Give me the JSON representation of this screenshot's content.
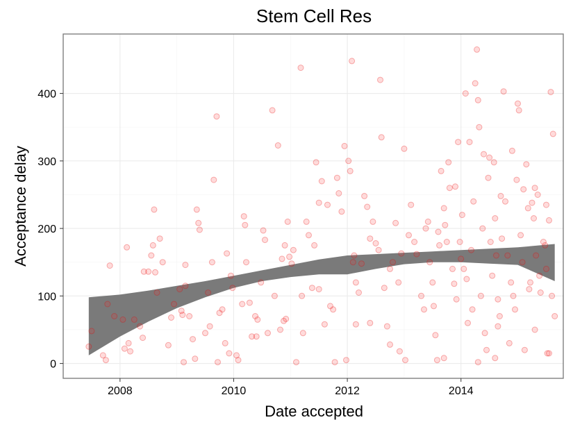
{
  "chart_data": {
    "type": "scatter",
    "title": "Stem Cell Res",
    "xlabel": "Date accepted",
    "ylabel": "Acceptance delay",
    "xlim": [
      2007.0,
      2015.8
    ],
    "ylim": [
      -22,
      488
    ],
    "x_ticks": [
      2008,
      2010,
      2012,
      2014
    ],
    "x_tick_labels": [
      "2008",
      "2010",
      "2012",
      "2014"
    ],
    "y_ticks": [
      0,
      100,
      200,
      300,
      400
    ],
    "y_tick_labels": [
      "0",
      "100",
      "200",
      "300",
      "400"
    ],
    "grid": true,
    "points": [
      [
        2007.45,
        25
      ],
      [
        2007.5,
        48
      ],
      [
        2007.7,
        12
      ],
      [
        2007.75,
        5
      ],
      [
        2007.78,
        88
      ],
      [
        2007.82,
        145
      ],
      [
        2007.9,
        70
      ],
      [
        2008.05,
        65
      ],
      [
        2008.08,
        22
      ],
      [
        2008.12,
        172
      ],
      [
        2008.15,
        30
      ],
      [
        2008.18,
        18
      ],
      [
        2008.25,
        65
      ],
      [
        2008.35,
        55
      ],
      [
        2008.4,
        38
      ],
      [
        2008.42,
        136
      ],
      [
        2008.5,
        136
      ],
      [
        2008.55,
        160
      ],
      [
        2008.58,
        175
      ],
      [
        2008.6,
        228
      ],
      [
        2008.62,
        135
      ],
      [
        2008.65,
        105
      ],
      [
        2008.7,
        185
      ],
      [
        2008.75,
        150
      ],
      [
        2008.85,
        27
      ],
      [
        2008.9,
        68
      ],
      [
        2008.95,
        88
      ],
      [
        2009.05,
        110
      ],
      [
        2009.08,
        78
      ],
      [
        2009.1,
        72
      ],
      [
        2009.12,
        2
      ],
      [
        2009.15,
        146
      ],
      [
        2009.22,
        70
      ],
      [
        2009.28,
        36
      ],
      [
        2009.32,
        7
      ],
      [
        2009.35,
        228
      ],
      [
        2009.38,
        208
      ],
      [
        2009.4,
        198
      ],
      [
        2009.5,
        45
      ],
      [
        2009.58,
        55
      ],
      [
        2009.62,
        150
      ],
      [
        2009.65,
        272
      ],
      [
        2009.7,
        366
      ],
      [
        2009.72,
        2
      ],
      [
        2009.75,
        75
      ],
      [
        2009.8,
        80
      ],
      [
        2009.85,
        30
      ],
      [
        2009.88,
        163
      ],
      [
        2009.92,
        15
      ],
      [
        2009.98,
        112
      ],
      [
        2010.05,
        12
      ],
      [
        2010.08,
        5
      ],
      [
        2010.15,
        88
      ],
      [
        2010.18,
        218
      ],
      [
        2010.2,
        205
      ],
      [
        2010.22,
        150
      ],
      [
        2010.28,
        90
      ],
      [
        2010.32,
        40
      ],
      [
        2010.38,
        70
      ],
      [
        2010.42,
        65
      ],
      [
        2010.48,
        120
      ],
      [
        2010.52,
        197
      ],
      [
        2010.55,
        183
      ],
      [
        2010.6,
        45
      ],
      [
        2010.68,
        375
      ],
      [
        2010.72,
        100
      ],
      [
        2010.78,
        323
      ],
      [
        2010.82,
        50
      ],
      [
        2010.88,
        63
      ],
      [
        2010.9,
        175
      ],
      [
        2010.92,
        66
      ],
      [
        2010.95,
        210
      ],
      [
        2010.98,
        158
      ],
      [
        2011.02,
        148
      ],
      [
        2011.05,
        168
      ],
      [
        2011.1,
        2
      ],
      [
        2011.18,
        438
      ],
      [
        2011.22,
        45
      ],
      [
        2011.28,
        210
      ],
      [
        2011.32,
        190
      ],
      [
        2011.38,
        112
      ],
      [
        2011.42,
        175
      ],
      [
        2011.45,
        298
      ],
      [
        2011.5,
        238
      ],
      [
        2011.55,
        270
      ],
      [
        2011.6,
        58
      ],
      [
        2011.65,
        235
      ],
      [
        2011.7,
        85
      ],
      [
        2011.75,
        80
      ],
      [
        2011.78,
        2
      ],
      [
        2011.82,
        275
      ],
      [
        2011.85,
        252
      ],
      [
        2011.9,
        225
      ],
      [
        2011.95,
        322
      ],
      [
        2011.98,
        5
      ],
      [
        2012.02,
        300
      ],
      [
        2012.05,
        285
      ],
      [
        2012.08,
        448
      ],
      [
        2012.1,
        150
      ],
      [
        2012.12,
        160
      ],
      [
        2012.15,
        58
      ],
      [
        2012.2,
        105
      ],
      [
        2012.25,
        148
      ],
      [
        2012.3,
        248
      ],
      [
        2012.35,
        232
      ],
      [
        2012.4,
        185
      ],
      [
        2012.45,
        210
      ],
      [
        2012.5,
        178
      ],
      [
        2012.55,
        168
      ],
      [
        2012.58,
        420
      ],
      [
        2012.6,
        335
      ],
      [
        2012.65,
        112
      ],
      [
        2012.7,
        55
      ],
      [
        2012.75,
        28
      ],
      [
        2012.8,
        150
      ],
      [
        2012.85,
        208
      ],
      [
        2012.9,
        120
      ],
      [
        2012.92,
        18
      ],
      [
        2012.95,
        163
      ],
      [
        2013.0,
        318
      ],
      [
        2013.02,
        5
      ],
      [
        2013.08,
        190
      ],
      [
        2013.12,
        235
      ],
      [
        2013.18,
        180
      ],
      [
        2013.22,
        162
      ],
      [
        2013.3,
        100
      ],
      [
        2013.38,
        200
      ],
      [
        2013.42,
        210
      ],
      [
        2013.45,
        150
      ],
      [
        2013.5,
        120
      ],
      [
        2013.52,
        85
      ],
      [
        2013.55,
        42
      ],
      [
        2013.58,
        5
      ],
      [
        2013.6,
        195
      ],
      [
        2013.62,
        175
      ],
      [
        2013.65,
        285
      ],
      [
        2013.7,
        230
      ],
      [
        2013.72,
        205
      ],
      [
        2013.75,
        180
      ],
      [
        2013.78,
        298
      ],
      [
        2013.8,
        260
      ],
      [
        2013.85,
        140
      ],
      [
        2013.88,
        118
      ],
      [
        2013.9,
        262
      ],
      [
        2013.92,
        95
      ],
      [
        2013.95,
        328
      ],
      [
        2013.98,
        180
      ],
      [
        2014.0,
        155
      ],
      [
        2014.02,
        220
      ],
      [
        2014.05,
        140
      ],
      [
        2014.08,
        400
      ],
      [
        2014.1,
        125
      ],
      [
        2014.12,
        60
      ],
      [
        2014.15,
        328
      ],
      [
        2014.18,
        168
      ],
      [
        2014.2,
        80
      ],
      [
        2014.22,
        240
      ],
      [
        2014.25,
        415
      ],
      [
        2014.28,
        465
      ],
      [
        2014.3,
        390
      ],
      [
        2014.32,
        350
      ],
      [
        2014.35,
        100
      ],
      [
        2014.38,
        200
      ],
      [
        2014.4,
        310
      ],
      [
        2014.42,
        45
      ],
      [
        2014.45,
        20
      ],
      [
        2014.48,
        275
      ],
      [
        2014.5,
        305
      ],
      [
        2014.52,
        180
      ],
      [
        2014.55,
        130
      ],
      [
        2014.58,
        298
      ],
      [
        2014.6,
        215
      ],
      [
        2014.62,
        160
      ],
      [
        2014.65,
        95
      ],
      [
        2014.68,
        70
      ],
      [
        2014.7,
        248
      ],
      [
        2014.72,
        185
      ],
      [
        2014.75,
        403
      ],
      [
        2014.78,
        240
      ],
      [
        2014.82,
        160
      ],
      [
        2014.85,
        30
      ],
      [
        2014.88,
        120
      ],
      [
        2014.9,
        315
      ],
      [
        2014.92,
        100
      ],
      [
        2014.95,
        80
      ],
      [
        2014.98,
        272
      ],
      [
        2015.0,
        385
      ],
      [
        2015.02,
        375
      ],
      [
        2015.05,
        190
      ],
      [
        2015.08,
        150
      ],
      [
        2015.1,
        258
      ],
      [
        2015.12,
        20
      ],
      [
        2015.15,
        295
      ],
      [
        2015.18,
        230
      ],
      [
        2015.2,
        110
      ],
      [
        2015.25,
        238
      ],
      [
        2015.28,
        215
      ],
      [
        2015.3,
        260
      ],
      [
        2015.32,
        160
      ],
      [
        2015.35,
        250
      ],
      [
        2015.38,
        130
      ],
      [
        2015.4,
        105
      ],
      [
        2015.45,
        180
      ],
      [
        2015.48,
        175
      ],
      [
        2015.5,
        140
      ],
      [
        2015.52,
        15
      ],
      [
        2015.55,
        212
      ],
      [
        2015.58,
        402
      ],
      [
        2015.6,
        100
      ],
      [
        2015.62,
        340
      ],
      [
        2015.65,
        70
      ],
      [
        2015.5,
        235
      ],
      [
        2015.55,
        15
      ],
      [
        2015.3,
        50
      ],
      [
        2015.22,
        120
      ],
      [
        2014.65,
        55
      ],
      [
        2014.6,
        8
      ],
      [
        2014.3,
        2
      ],
      [
        2013.7,
        8
      ],
      [
        2013.35,
        80
      ],
      [
        2012.75,
        140
      ],
      [
        2012.4,
        60
      ],
      [
        2012.15,
        120
      ],
      [
        2011.5,
        110
      ],
      [
        2011.2,
        100
      ],
      [
        2010.85,
        155
      ],
      [
        2010.4,
        40
      ],
      [
        2009.95,
        130
      ],
      [
        2009.55,
        105
      ],
      [
        2009.15,
        115
      ]
    ],
    "smooth": {
      "x": [
        2007.45,
        2008.0,
        2008.5,
        2009.0,
        2009.5,
        2010.0,
        2010.5,
        2011.0,
        2011.5,
        2012.0,
        2012.5,
        2013.0,
        2013.5,
        2014.0,
        2014.5,
        2015.0,
        2015.65
      ],
      "upper": [
        98,
        102,
        108,
        115,
        122,
        130,
        138,
        146,
        154,
        160,
        162,
        164,
        166,
        168,
        170,
        172,
        177
      ],
      "lower": [
        12,
        40,
        62,
        82,
        98,
        112,
        122,
        128,
        132,
        132,
        140,
        147,
        150,
        150,
        148,
        146,
        122
      ]
    }
  }
}
